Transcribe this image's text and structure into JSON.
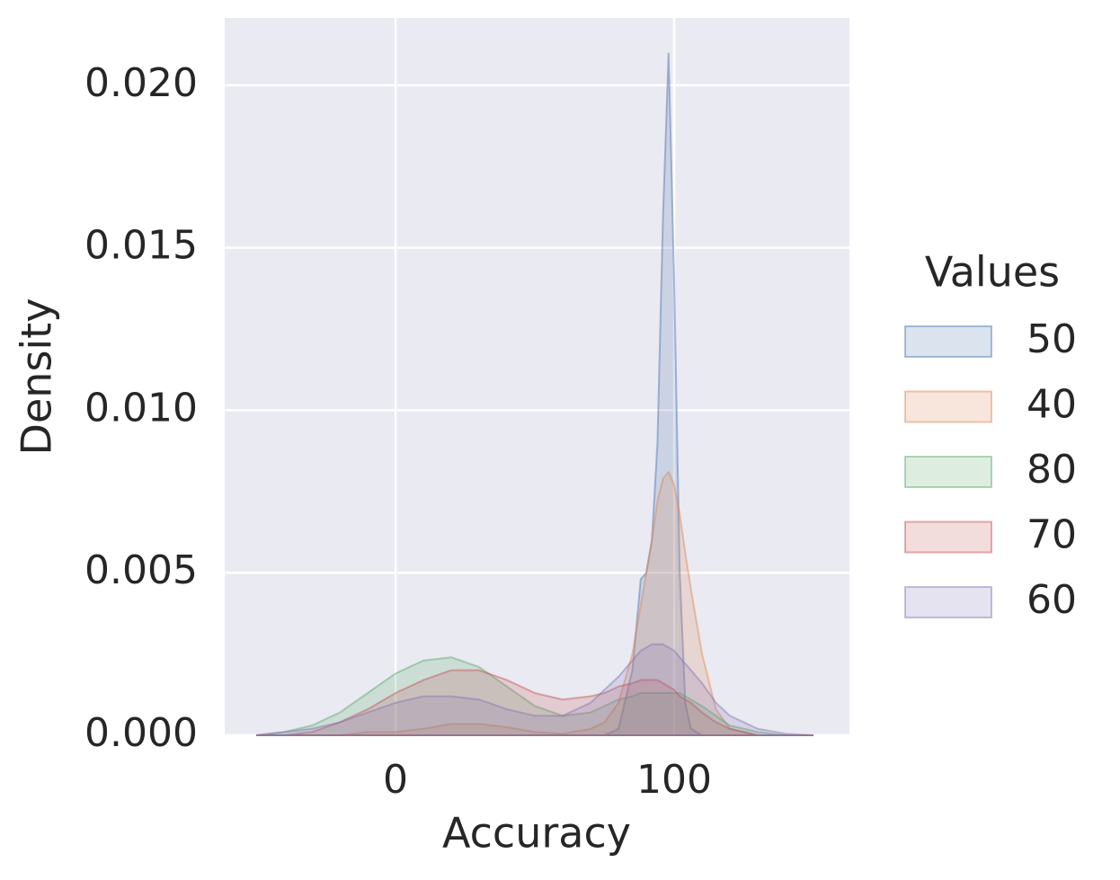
{
  "chart_data": {
    "type": "kde",
    "xlabel": "Accuracy",
    "ylabel": "Density",
    "legend_title": "Values",
    "x": [
      -50,
      -40,
      -30,
      -20,
      -10,
      0,
      10,
      20,
      30,
      40,
      50,
      60,
      70,
      75,
      80,
      85,
      88,
      90,
      92,
      94,
      96,
      98,
      100,
      102,
      104,
      106,
      110,
      115,
      120,
      130,
      140,
      150
    ],
    "series": [
      {
        "name": "50",
        "color": "#4c72b0",
        "values": [
          0,
          0,
          0,
          0,
          0,
          0,
          0,
          0,
          0,
          0,
          0,
          0,
          0,
          0,
          0.0002,
          0.002,
          0.0048,
          0.005,
          0.006,
          0.009,
          0.016,
          0.021,
          0.014,
          0.005,
          0.001,
          0.0002,
          0,
          0,
          0,
          0,
          0,
          0
        ]
      },
      {
        "name": "40",
        "color": "#dd8452",
        "values": [
          0,
          0,
          0,
          0,
          0.0001,
          0.0001,
          0.0002,
          0.00035,
          0.00035,
          0.00025,
          0.0001,
          5e-05,
          0.0002,
          0.0004,
          0.001,
          0.0025,
          0.004,
          0.005,
          0.006,
          0.0072,
          0.0079,
          0.0081,
          0.0077,
          0.0068,
          0.0056,
          0.0045,
          0.0025,
          0.0008,
          0.0002,
          0,
          0,
          0
        ]
      },
      {
        "name": "80",
        "color": "#55a868",
        "values": [
          0,
          0.0001,
          0.0003,
          0.0007,
          0.0013,
          0.0019,
          0.0023,
          0.0024,
          0.0021,
          0.0015,
          0.0009,
          0.0006,
          0.0007,
          0.0009,
          0.0011,
          0.0012,
          0.0013,
          0.0013,
          0.0013,
          0.0013,
          0.0013,
          0.0013,
          0.0013,
          0.0013,
          0.0012,
          0.0011,
          0.0009,
          0.0006,
          0.0003,
          0.0001,
          0,
          0
        ]
      },
      {
        "name": "70",
        "color": "#c44e52",
        "values": [
          0,
          0,
          0.0001,
          0.0004,
          0.0008,
          0.0013,
          0.0017,
          0.002,
          0.002,
          0.0017,
          0.0013,
          0.0011,
          0.0012,
          0.0013,
          0.0015,
          0.0016,
          0.0017,
          0.0017,
          0.0017,
          0.0017,
          0.0016,
          0.0015,
          0.0014,
          0.0012,
          0.0011,
          0.001,
          0.0007,
          0.0004,
          0.0002,
          0,
          0,
          0
        ]
      },
      {
        "name": "60",
        "color": "#8172b3",
        "values": [
          0,
          0.0001,
          0.0002,
          0.0004,
          0.0007,
          0.001,
          0.0012,
          0.0012,
          0.0011,
          0.0008,
          0.0006,
          0.0006,
          0.001,
          0.0014,
          0.0018,
          0.0023,
          0.0026,
          0.0027,
          0.0028,
          0.0028,
          0.0028,
          0.0027,
          0.0026,
          0.0024,
          0.0022,
          0.002,
          0.0016,
          0.001,
          0.0006,
          0.0002,
          5e-05,
          0
        ]
      }
    ],
    "xlim": [
      -61.3,
      162.9
    ],
    "xticks": [
      0,
      100
    ],
    "ylim": [
      0,
      0.02207
    ],
    "yticks": [
      {
        "value": 0,
        "label": "0.000"
      },
      {
        "value": 0.005,
        "label": "0.005"
      },
      {
        "value": 0.01,
        "label": "0.010"
      },
      {
        "value": 0.015,
        "label": "0.015"
      },
      {
        "value": 0.02,
        "label": "0.020"
      }
    ],
    "grid": true,
    "legend": "right"
  }
}
